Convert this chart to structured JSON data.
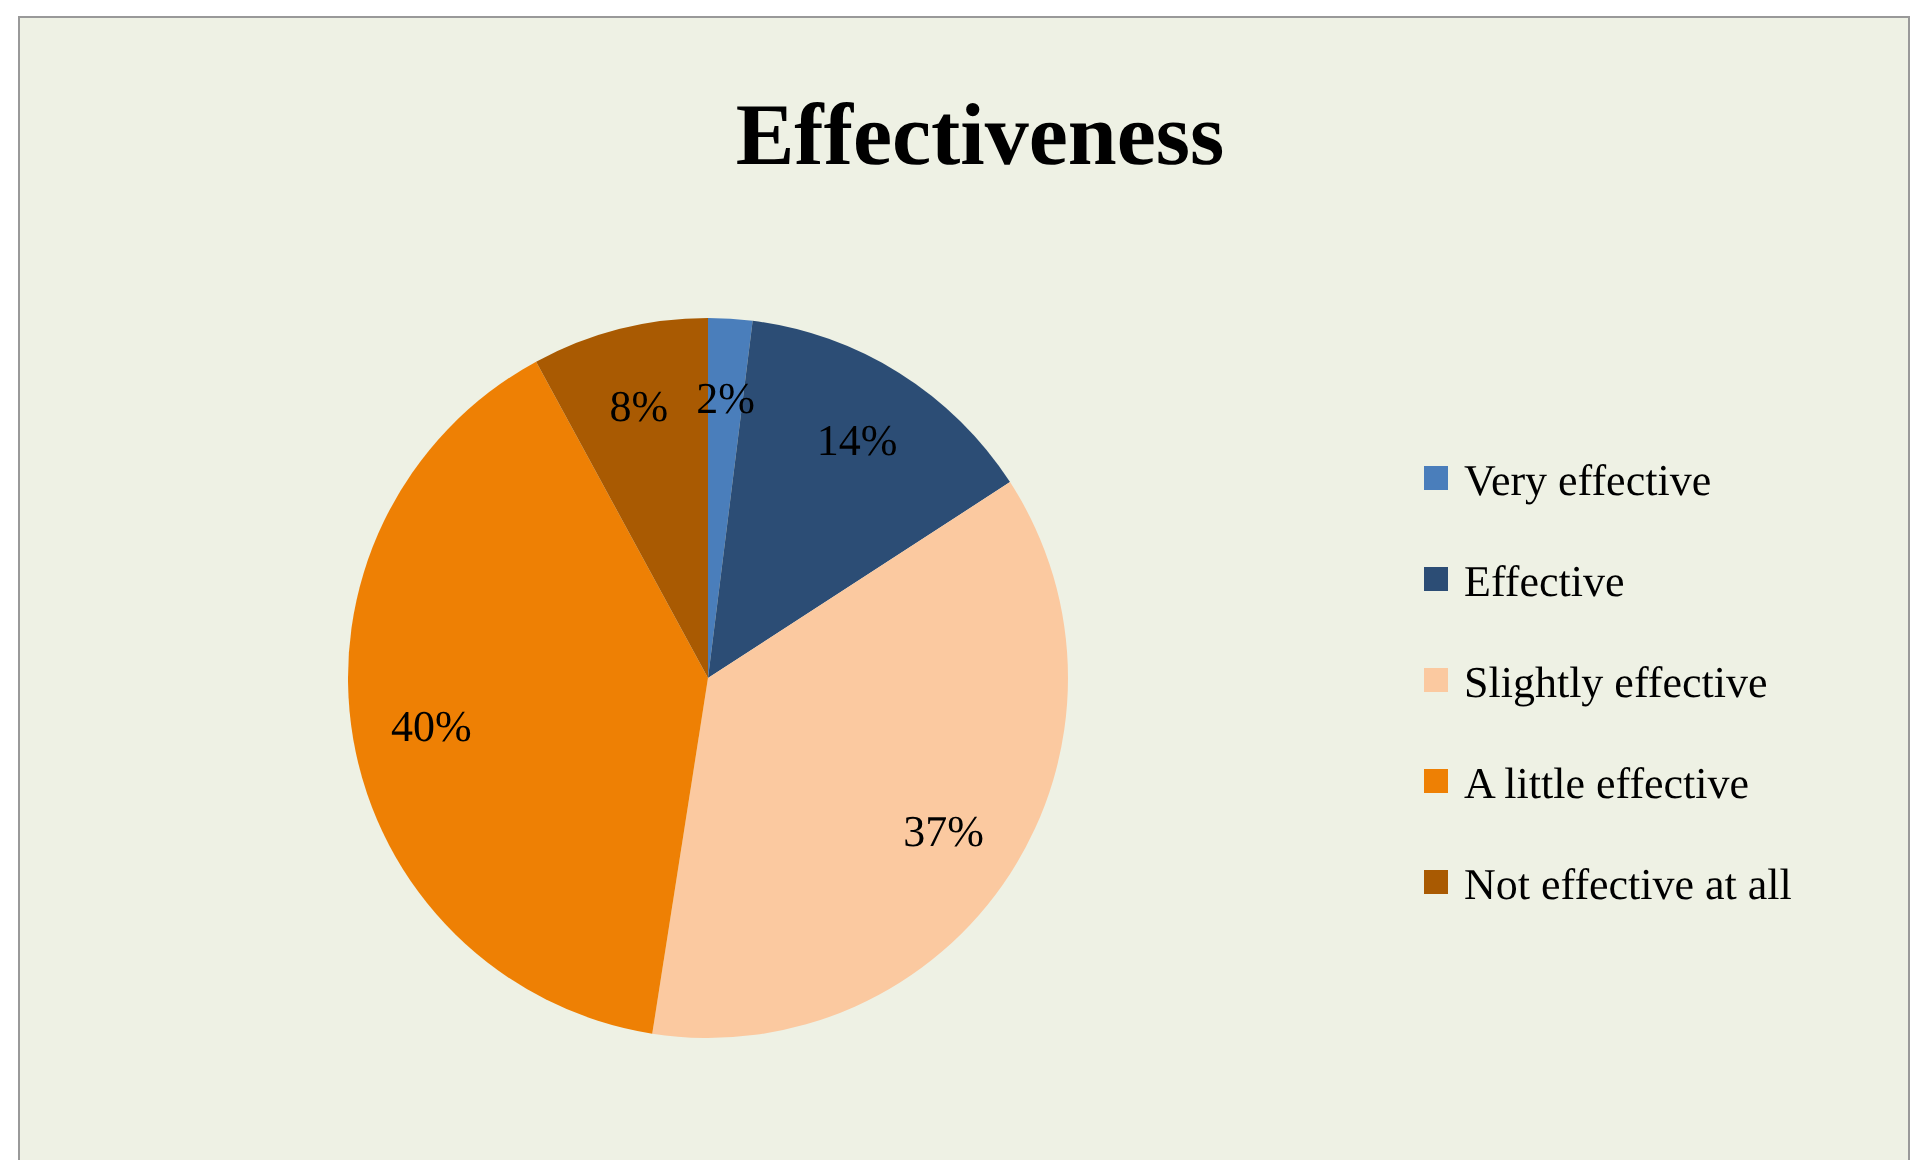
{
  "chart_data": {
    "type": "pie",
    "title": "Effectiveness",
    "categories": [
      "Very effective",
      "Effective",
      "Slightly effective",
      "A little effective",
      "Not effective at all"
    ],
    "values": [
      2,
      14,
      37,
      40,
      8
    ],
    "value_labels": [
      "2%",
      "14%",
      "37%",
      "40%",
      "8%"
    ],
    "colors": [
      "#4a7ebb",
      "#2c4d75",
      "#fbc9a0",
      "#ee8004",
      "#a95a02"
    ],
    "legend": "right"
  }
}
